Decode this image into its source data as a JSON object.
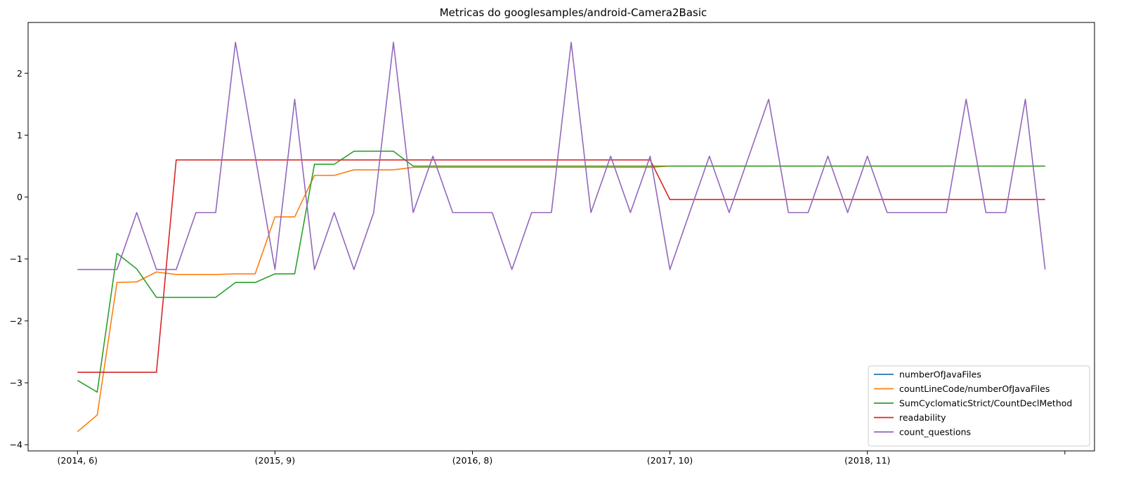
{
  "chart_data": {
    "type": "line",
    "title": "Metricas do googlesamples/android-Camera2Basic",
    "xlabel": "",
    "ylabel": "",
    "x": [
      0,
      1,
      2,
      3,
      4,
      5,
      6,
      7,
      8,
      9,
      10,
      11,
      12,
      13,
      14,
      15,
      16,
      17,
      18,
      19,
      20,
      21,
      22,
      23,
      24,
      25,
      26,
      27,
      28,
      29,
      30,
      31,
      32,
      33,
      34,
      35,
      36,
      37,
      38,
      39,
      40,
      41,
      42,
      43,
      44,
      45,
      46,
      47,
      48,
      49
    ],
    "xlim": [
      -2.5,
      51.5
    ],
    "xticks": [
      {
        "pos": 0,
        "label": "(2014, 6)"
      },
      {
        "pos": 10,
        "label": "(2015, 9)"
      },
      {
        "pos": 20,
        "label": "(2016, 8)"
      },
      {
        "pos": 30,
        "label": "(2017, 10)"
      },
      {
        "pos": 40,
        "label": "(2018, 11)"
      },
      {
        "pos": 50,
        "label": ""
      }
    ],
    "ylim": [
      -4.1,
      2.82
    ],
    "yticks": [
      {
        "value": 2,
        "label": "2"
      },
      {
        "value": 1,
        "label": "1"
      },
      {
        "value": 0,
        "label": "0"
      },
      {
        "value": -1,
        "label": "−1"
      },
      {
        "value": -2,
        "label": "−2"
      },
      {
        "value": -3,
        "label": "−3"
      },
      {
        "value": -4,
        "label": "−4"
      }
    ],
    "grid": false,
    "legend_position": "lower-right",
    "series": [
      {
        "name": "numberOfJavaFiles",
        "color": "#1f77b4",
        "values": [
          null,
          null,
          null,
          null,
          null,
          null,
          null,
          null,
          null,
          null,
          null,
          null,
          null,
          null,
          null,
          null,
          null,
          null,
          null,
          null,
          null,
          null,
          null,
          null,
          null,
          null,
          null,
          null,
          null,
          null,
          null,
          null,
          null,
          null,
          null,
          null,
          null,
          null,
          null,
          null,
          null,
          null,
          null,
          null,
          null,
          null,
          null,
          null,
          null,
          null
        ]
      },
      {
        "name": "countLineCode/numberOfJavaFiles",
        "color": "#ff7f0e",
        "values": [
          -3.79,
          -3.52,
          -1.38,
          -1.37,
          -1.21,
          -1.25,
          -1.25,
          -1.25,
          -1.24,
          -1.24,
          -0.32,
          -0.32,
          0.35,
          0.35,
          0.44,
          0.44,
          0.44,
          0.48,
          0.48,
          0.48,
          0.48,
          0.48,
          0.48,
          0.48,
          0.48,
          0.48,
          0.48,
          0.48,
          0.48,
          0.48,
          0.5,
          0.5,
          0.5,
          0.5,
          0.5,
          0.5,
          0.5,
          0.5,
          0.5,
          0.5,
          0.5,
          0.5,
          0.5,
          0.5,
          0.5,
          0.5,
          0.5,
          0.5,
          0.5,
          0.5
        ]
      },
      {
        "name": "SumCyclomaticStrict/CountDeclMethod",
        "color": "#2ca02c",
        "values": [
          -2.96,
          -3.15,
          -0.91,
          -1.16,
          -1.62,
          -1.62,
          -1.62,
          -1.62,
          -1.38,
          -1.38,
          -1.24,
          -1.24,
          0.53,
          0.53,
          0.74,
          0.74,
          0.74,
          0.5,
          0.5,
          0.5,
          0.5,
          0.5,
          0.5,
          0.5,
          0.5,
          0.5,
          0.5,
          0.5,
          0.5,
          0.5,
          0.5,
          0.5,
          0.5,
          0.5,
          0.5,
          0.5,
          0.5,
          0.5,
          0.5,
          0.5,
          0.5,
          0.5,
          0.5,
          0.5,
          0.5,
          0.5,
          0.5,
          0.5,
          0.5,
          0.5
        ]
      },
      {
        "name": "readability",
        "color": "#d62728",
        "values": [
          -2.83,
          -2.83,
          -2.83,
          -2.83,
          -2.83,
          0.6,
          0.6,
          0.6,
          0.6,
          0.6,
          0.6,
          0.6,
          0.6,
          0.6,
          0.6,
          0.6,
          0.6,
          0.6,
          0.6,
          0.6,
          0.6,
          0.6,
          0.6,
          0.6,
          0.6,
          0.6,
          0.6,
          0.6,
          0.6,
          0.6,
          -0.04,
          -0.04,
          -0.04,
          -0.04,
          -0.04,
          -0.04,
          -0.04,
          -0.04,
          -0.04,
          -0.04,
          -0.04,
          -0.04,
          -0.04,
          -0.04,
          -0.04,
          -0.04,
          -0.04,
          -0.04,
          -0.04,
          -0.04
        ]
      },
      {
        "name": "count_questions",
        "color": "#9467bd",
        "values": [
          -1.17,
          -1.17,
          -1.17,
          -0.25,
          -1.17,
          -1.17,
          -0.25,
          -0.25,
          2.5,
          0.66,
          -1.17,
          1.58,
          -1.17,
          -0.25,
          -1.17,
          -0.25,
          2.5,
          -0.25,
          0.66,
          -0.25,
          -0.25,
          -0.25,
          -1.17,
          -0.25,
          -0.25,
          2.5,
          -0.25,
          0.66,
          -0.25,
          0.66,
          -1.17,
          -0.25,
          0.66,
          -0.25,
          0.66,
          1.58,
          -0.25,
          -0.25,
          0.66,
          -0.25,
          0.66,
          -0.25,
          -0.25,
          -0.25,
          -0.25,
          1.58,
          -0.25,
          -0.25,
          1.58,
          -1.17
        ]
      }
    ]
  }
}
